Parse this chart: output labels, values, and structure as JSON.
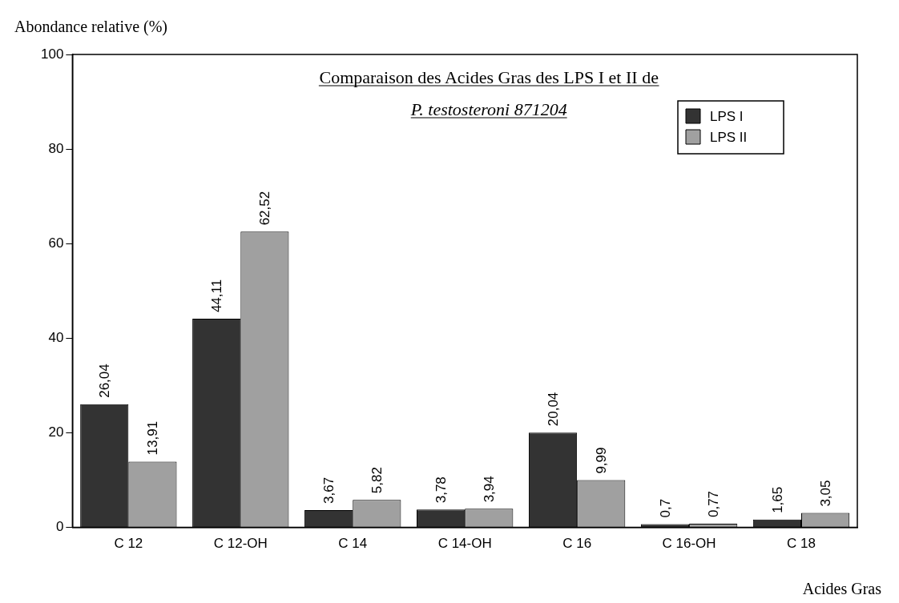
{
  "chart_data": {
    "type": "bar",
    "title": "Comparaison des Acides Gras des LPS I et II de",
    "subtitle": "P. testosteroni 871204",
    "xlabel": "Acides Gras",
    "ylabel": "Abondance relative (%)",
    "categories": [
      "C 12",
      "C 12-OH",
      "C 14",
      "C 14-OH",
      "C 16",
      "C 16-OH",
      "C 18"
    ],
    "series": [
      {
        "name": "LPS I",
        "color": "#333333",
        "values": [
          26.04,
          44.11,
          3.67,
          3.78,
          20.04,
          0.7,
          1.65
        ],
        "value_labels": [
          "26,04",
          "44,11",
          "3,67",
          "3,78",
          "20,04",
          "0,7",
          "1,65"
        ]
      },
      {
        "name": "LPS II",
        "color": "#a0a0a0",
        "values": [
          13.91,
          62.52,
          5.82,
          3.94,
          9.99,
          0.77,
          3.05
        ],
        "value_labels": [
          "13,91",
          "62,52",
          "5,82",
          "3,94",
          "9,99",
          "0,77",
          "3,05"
        ]
      }
    ],
    "ylim": [
      0,
      100
    ],
    "yticks": [
      0,
      20,
      40,
      60,
      80,
      100
    ],
    "grid": false,
    "legend": "top right"
  }
}
